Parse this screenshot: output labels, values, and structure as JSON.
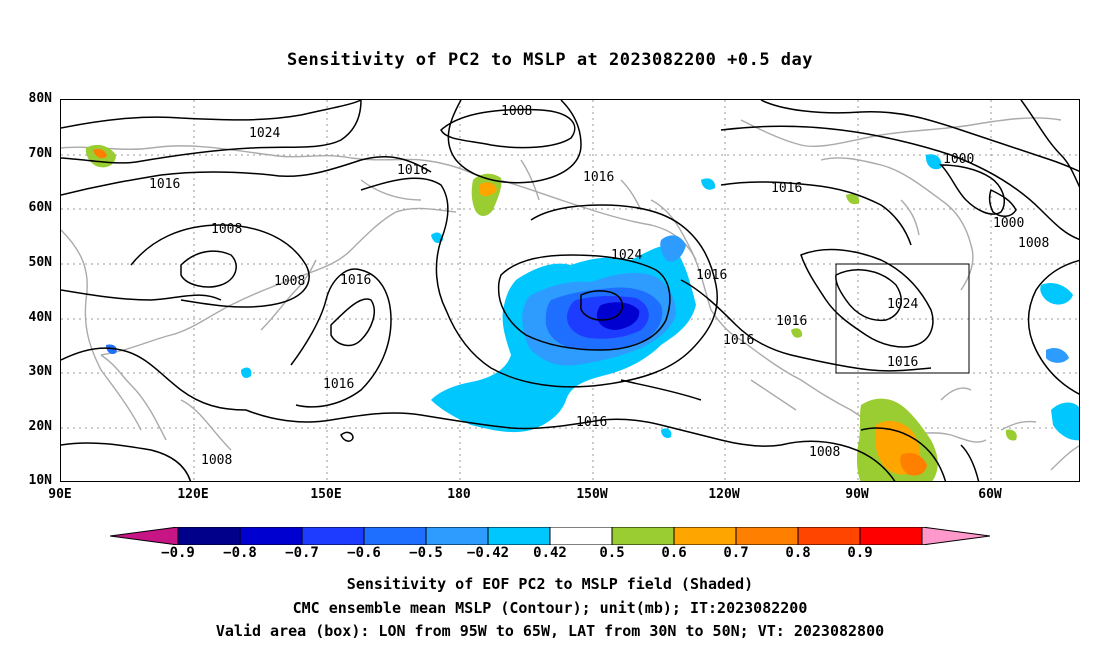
{
  "title": "Sensitivity of PC2 to MSLP at 2023082200 +0.5 day",
  "lat_labels": [
    "80N",
    "70N",
    "60N",
    "50N",
    "40N",
    "30N",
    "20N",
    "10N"
  ],
  "lon_labels": [
    "90E",
    "120E",
    "150E",
    "180",
    "150W",
    "120W",
    "90W",
    "60W"
  ],
  "contour_labels": [
    "1008",
    "1024",
    "1016",
    "1016",
    "1016",
    "1000",
    "1008",
    "1008",
    "1016",
    "1024",
    "1016",
    "1016",
    "1016",
    "1016",
    "1024",
    "1016",
    "1016",
    "1000",
    "1008",
    "1016",
    "1016",
    "1008",
    "1008"
  ],
  "colorbar": {
    "ticks": [
      "−0.9",
      "−0.8",
      "−0.7",
      "−0.6",
      "−0.5",
      "−0.42",
      "0.42",
      "0.5",
      "0.6",
      "0.7",
      "0.8",
      "0.9"
    ],
    "colors": [
      "#c71585",
      "#00008b",
      "#0000d0",
      "#1e3cff",
      "#1e6fff",
      "#2e9bff",
      "#00c8ff",
      "#ffffff",
      "#9acd32",
      "#ffa500",
      "#ff7f00",
      "#ff4500",
      "#ff0000",
      "#ff99cc"
    ]
  },
  "captions": [
    "Sensitivity of EOF PC2 to MSLP field (Shaded)",
    "CMC ensemble mean MSLP (Contour); unit(mb); IT:2023082200",
    "Valid area (box): LON from 95W to 65W, LAT from 30N to 50N; VT: 2023082800"
  ]
}
